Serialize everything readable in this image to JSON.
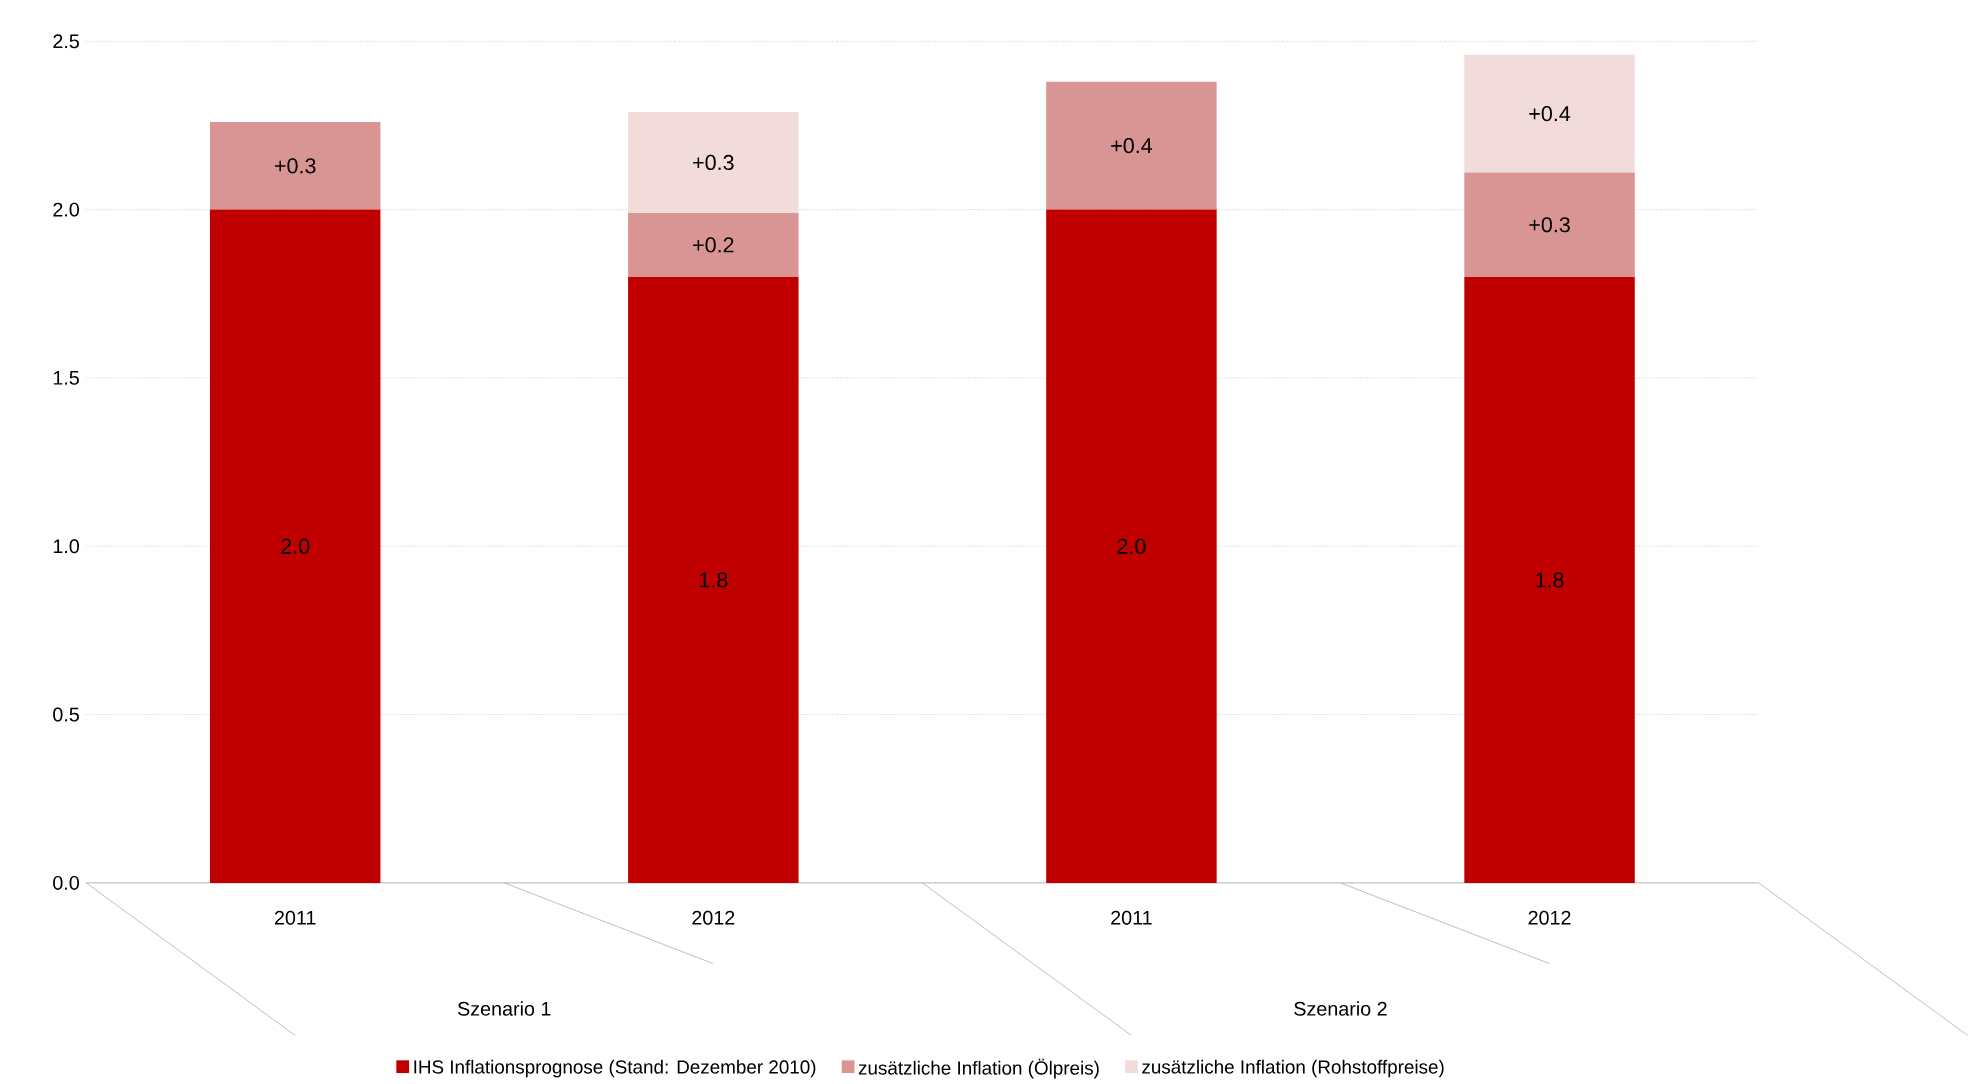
{
  "chart_data": {
    "type": "bar",
    "stacked": true,
    "categories": [
      "2011",
      "2012",
      "2011",
      "2012"
    ],
    "annotations": [
      "Szenario 1",
      "Szenario 2"
    ],
    "series": [
      {
        "name": "IHS Inflationsprognose (Stand: Dezember 2010)",
        "color": "#c00000",
        "values": [
          2.0,
          1.8,
          2.0,
          1.8
        ],
        "value_labels": [
          "2.0",
          "1.8",
          "2.0",
          "1.8"
        ]
      },
      {
        "name": "zusätzliche Inflation (Ölpreis)",
        "color": "#d99594",
        "values": [
          0.26,
          0.19,
          0.38,
          0.31
        ],
        "value_labels": [
          "+0.3",
          "+0.2",
          "+0.4",
          "+0.3"
        ]
      },
      {
        "name": "zusätzliche Inflation (Rohstoffpreise)",
        "color": "#f2dcdb",
        "values": [
          null,
          0.3,
          null,
          0.35
        ],
        "value_labels": [
          null,
          "+0.3",
          null,
          "+0.4"
        ]
      }
    ],
    "ylim": [
      0,
      2.5
    ],
    "yticks": [
      {
        "value": 0,
        "label": "0.0"
      },
      {
        "value": 0.5,
        "label": "0.5"
      },
      {
        "value": 1,
        "label": "1.0"
      },
      {
        "value": 1.5,
        "label": "1.5"
      },
      {
        "value": 2,
        "label": "2.0"
      },
      {
        "value": 2.5,
        "label": "2.5"
      }
    ],
    "grid": "y",
    "legend": "bottom"
  }
}
